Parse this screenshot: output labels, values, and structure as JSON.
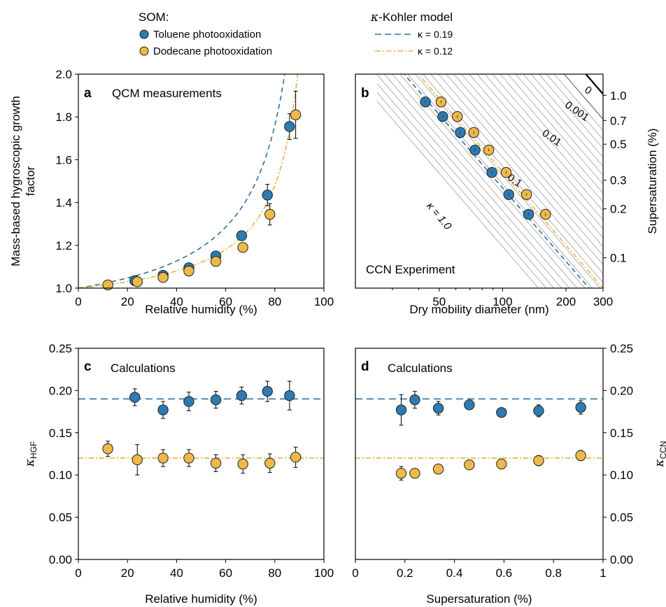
{
  "legend": {
    "som_title": "SOM:",
    "model_title_symbol": "κ",
    "model_title_rest": "-Kohler model",
    "toluene_label": "Toluene photooxidation",
    "dodecane_label": "Dodecane photooxidation",
    "kappa_toluene_label": "κ = 0.19",
    "kappa_dodecane_label": "κ = 0.12"
  },
  "colors": {
    "toluene": "#2e7bb3",
    "dodecane": "#efb94a",
    "toluene_line": "#2f6f9f",
    "dodecane_line": "#e8b33c",
    "isoline": "#a8a8a8",
    "isoline_labeled": "#555555"
  },
  "chart_data": [
    {
      "panel": "a",
      "type": "scatter",
      "title": "QCM measurements",
      "xlabel": "Relative humidity (%)",
      "ylabel": "Mass-based hygroscopic growth factor",
      "xlim": [
        0,
        100
      ],
      "ylim": [
        1.0,
        2.0
      ],
      "xticks": [
        0,
        20,
        40,
        60,
        80,
        100
      ],
      "yticks": [
        1.0,
        1.2,
        1.4,
        1.6,
        1.8,
        2.0
      ],
      "series": [
        {
          "name": "Toluene photooxidation",
          "points": [
            {
              "x": 23,
              "y": 1.035,
              "err": 0.01
            },
            {
              "x": 34.5,
              "y": 1.06,
              "err": 0.01
            },
            {
              "x": 45,
              "y": 1.095,
              "err": 0.01
            },
            {
              "x": 56,
              "y": 1.15,
              "err": 0.01
            },
            {
              "x": 66.5,
              "y": 1.245,
              "err": 0.015
            },
            {
              "x": 77,
              "y": 1.435,
              "err": 0.05
            },
            {
              "x": 86,
              "y": 1.755,
              "err": 0.06
            }
          ],
          "kappa": 0.19
        },
        {
          "name": "Dodecane photooxidation",
          "points": [
            {
              "x": 12,
              "y": 1.015,
              "err": 0.005
            },
            {
              "x": 24,
              "y": 1.03,
              "err": 0.01
            },
            {
              "x": 34.5,
              "y": 1.05,
              "err": 0.01
            },
            {
              "x": 45,
              "y": 1.08,
              "err": 0.01
            },
            {
              "x": 56,
              "y": 1.125,
              "err": 0.01
            },
            {
              "x": 67,
              "y": 1.19,
              "err": 0.01
            },
            {
              "x": 78,
              "y": 1.345,
              "err": 0.05
            },
            {
              "x": 88.5,
              "y": 1.81,
              "err": 0.11
            }
          ],
          "kappa": 0.12
        }
      ]
    },
    {
      "panel": "b",
      "type": "scatter",
      "title": "CCN Experiment",
      "xlabel": "Dry mobility diameter (nm)",
      "ylabel": "Supersaturation (%)",
      "xscale": "log",
      "yscale": "log",
      "xlim": [
        20,
        300
      ],
      "ylim": [
        0.065,
        1.35
      ],
      "xticks": [
        50,
        100,
        200,
        300
      ],
      "yticks": [
        0.1,
        0.2,
        0.3,
        0.5,
        0.7,
        1.0
      ],
      "isoline_labels": [
        "0",
        "0.001",
        "0.01",
        "0.1",
        "κ = 1.0"
      ],
      "series": [
        {
          "name": "Toluene photooxidation",
          "points": [
            {
              "x": 43,
              "y": 0.91
            },
            {
              "x": 52,
              "y": 0.74
            },
            {
              "x": 63,
              "y": 0.59
            },
            {
              "x": 74,
              "y": 0.46
            },
            {
              "x": 89,
              "y": 0.335
            },
            {
              "x": 107,
              "y": 0.245
            },
            {
              "x": 133,
              "y": 0.185
            }
          ]
        },
        {
          "name": "Dodecane photooxidation",
          "points": [
            {
              "x": 51,
              "y": 0.91
            },
            {
              "x": 61,
              "y": 0.74
            },
            {
              "x": 73,
              "y": 0.59
            },
            {
              "x": 86,
              "y": 0.46
            },
            {
              "x": 104,
              "y": 0.335
            },
            {
              "x": 130,
              "y": 0.245
            },
            {
              "x": 160,
              "y": 0.185
            }
          ]
        }
      ]
    },
    {
      "panel": "c",
      "type": "scatter",
      "title": "Calculations",
      "xlabel": "Relative humidity (%)",
      "ylabel_main": "κ",
      "ylabel_sub": "HGF",
      "xlim": [
        0,
        100
      ],
      "ylim": [
        0,
        0.25
      ],
      "xticks": [
        0,
        20,
        40,
        60,
        80,
        100
      ],
      "yticks": [
        0.0,
        0.05,
        0.1,
        0.15,
        0.2,
        0.25
      ],
      "series": [
        {
          "name": "Toluene photooxidation",
          "points": [
            {
              "x": 23,
              "y": 0.192,
              "err": 0.01
            },
            {
              "x": 34.5,
              "y": 0.177,
              "err": 0.01
            },
            {
              "x": 45,
              "y": 0.187,
              "err": 0.011
            },
            {
              "x": 56,
              "y": 0.189,
              "err": 0.01
            },
            {
              "x": 66.5,
              "y": 0.194,
              "err": 0.01
            },
            {
              "x": 77,
              "y": 0.199,
              "err": 0.012
            },
            {
              "x": 86,
              "y": 0.194,
              "err": 0.017
            }
          ],
          "hline": 0.19
        },
        {
          "name": "Dodecane photooxidation",
          "points": [
            {
              "x": 12,
              "y": 0.131,
              "err": 0.009
            },
            {
              "x": 24,
              "y": 0.118,
              "err": 0.018
            },
            {
              "x": 34.5,
              "y": 0.12,
              "err": 0.01
            },
            {
              "x": 45,
              "y": 0.12,
              "err": 0.01
            },
            {
              "x": 56,
              "y": 0.114,
              "err": 0.01
            },
            {
              "x": 67,
              "y": 0.113,
              "err": 0.011
            },
            {
              "x": 78,
              "y": 0.114,
              "err": 0.011
            },
            {
              "x": 88.5,
              "y": 0.121,
              "err": 0.012
            }
          ],
          "hline": 0.12
        }
      ]
    },
    {
      "panel": "d",
      "type": "scatter",
      "title": "Calculations",
      "xlabel": "Supersaturation (%)",
      "ylabel_main": "κ",
      "ylabel_sub": "CCN",
      "xlim": [
        0,
        1
      ],
      "ylim": [
        0,
        0.25
      ],
      "xticks": [
        0,
        0.2,
        0.4,
        0.6,
        0.8,
        1
      ],
      "yticks": [
        0.0,
        0.05,
        0.1,
        0.15,
        0.2,
        0.25
      ],
      "series": [
        {
          "name": "Toluene photooxidation",
          "points": [
            {
              "x": 0.185,
              "y": 0.177,
              "err": 0.018
            },
            {
              "x": 0.24,
              "y": 0.189,
              "err": 0.01
            },
            {
              "x": 0.335,
              "y": 0.179,
              "err": 0.008
            },
            {
              "x": 0.46,
              "y": 0.183,
              "err": 0.005
            },
            {
              "x": 0.59,
              "y": 0.174,
              "err": 0.004
            },
            {
              "x": 0.74,
              "y": 0.176,
              "err": 0.007
            },
            {
              "x": 0.91,
              "y": 0.18,
              "err": 0.008
            }
          ],
          "hline": 0.19
        },
        {
          "name": "Dodecane photooxidation",
          "points": [
            {
              "x": 0.185,
              "y": 0.102,
              "err": 0.008
            },
            {
              "x": 0.24,
              "y": 0.102,
              "err": 0.004
            },
            {
              "x": 0.335,
              "y": 0.107,
              "err": 0.003
            },
            {
              "x": 0.46,
              "y": 0.112,
              "err": 0.003
            },
            {
              "x": 0.59,
              "y": 0.113,
              "err": 0.003
            },
            {
              "x": 0.74,
              "y": 0.117,
              "err": 0.006
            },
            {
              "x": 0.91,
              "y": 0.123,
              "err": 0.006
            }
          ],
          "hline": 0.12
        }
      ]
    }
  ]
}
